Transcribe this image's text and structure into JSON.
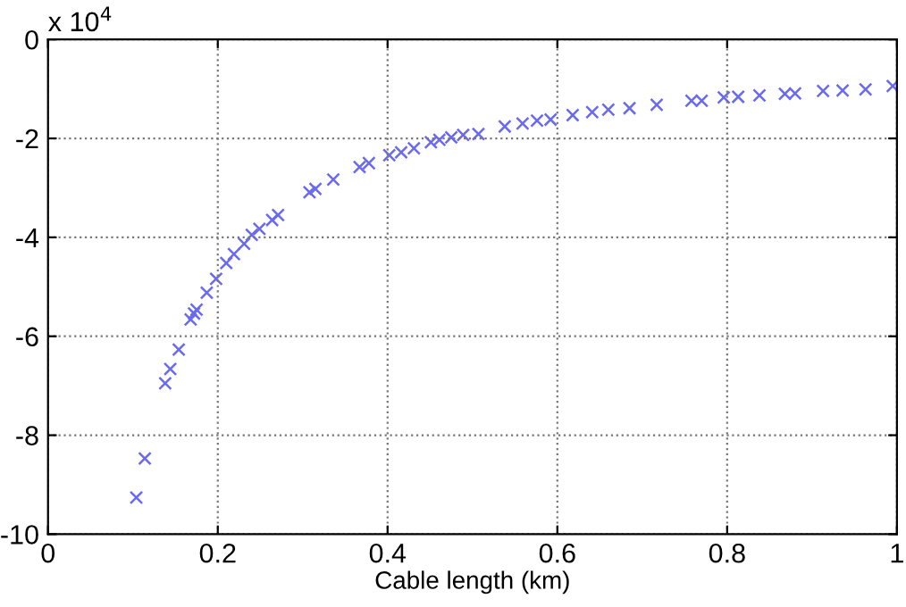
{
  "chart_data": {
    "type": "scatter",
    "xlabel": "Cable length (km)",
    "annotations": [
      "x 10$^{4}$"
    ],
    "x": [
      0.104,
      0.114,
      0.138,
      0.144,
      0.154,
      0.168,
      0.172,
      0.175,
      0.187,
      0.198,
      0.21,
      0.219,
      0.231,
      0.24,
      0.249,
      0.264,
      0.271,
      0.308,
      0.315,
      0.336,
      0.367,
      0.378,
      0.402,
      0.416,
      0.431,
      0.451,
      0.461,
      0.475,
      0.489,
      0.507,
      0.538,
      0.559,
      0.576,
      0.592,
      0.618,
      0.641,
      0.66,
      0.685,
      0.717,
      0.758,
      0.77,
      0.796,
      0.813,
      0.838,
      0.868,
      0.88,
      0.913,
      0.936,
      0.963,
      0.995
    ],
    "series": [
      {
        "color": "#6a6af0",
        "values": [
          -9.26,
          -8.47,
          -6.95,
          -6.66,
          -6.27,
          -5.66,
          -5.54,
          -5.46,
          -5.12,
          -4.84,
          -4.52,
          -4.34,
          -4.13,
          -3.95,
          -3.83,
          -3.65,
          -3.55,
          -3.09,
          -3.02,
          -2.83,
          -2.58,
          -2.5,
          -2.34,
          -2.28,
          -2.2,
          -2.08,
          -2.03,
          -1.98,
          -1.93,
          -1.91,
          -1.76,
          -1.7,
          -1.64,
          -1.62,
          -1.53,
          -1.47,
          -1.42,
          -1.39,
          -1.32,
          -1.24,
          -1.24,
          -1.17,
          -1.16,
          -1.13,
          -1.1,
          -1.09,
          -1.04,
          -1.03,
          -1.01,
          -0.94
        ]
      }
    ],
    "xlim": [
      0,
      1
    ],
    "ylim": [
      -10,
      0
    ],
    "xticks": [
      0,
      0.2,
      0.4,
      0.6,
      0.8,
      1
    ],
    "yticks": [
      -10,
      -8,
      -6,
      -4,
      -2,
      0
    ],
    "grid": true,
    "marker": "cross",
    "legend": false
  }
}
